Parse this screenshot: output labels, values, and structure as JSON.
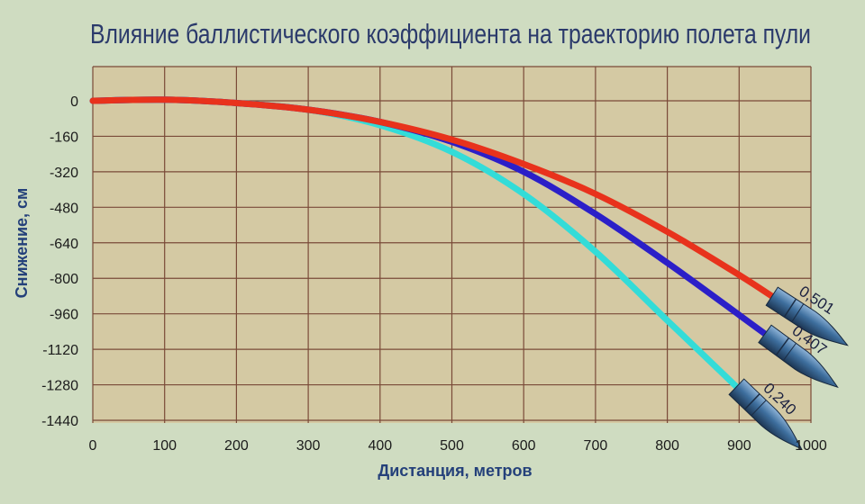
{
  "chart_data": {
    "type": "line",
    "title": "Влияние баллистического коэффициента на траекторию полета пули",
    "xlabel": "Дистанция, метров",
    "ylabel": "Снижение, см",
    "xlim": [
      0,
      1000
    ],
    "ylim": [
      -1440,
      0
    ],
    "x_ticks": [
      "0",
      "100",
      "200",
      "300",
      "400",
      "500",
      "600",
      "700",
      "800",
      "900",
      "1000"
    ],
    "y_ticks": [
      "0",
      "-160",
      "-320",
      "-480",
      "-640",
      "-800",
      "-960",
      "-1120",
      "-1280",
      "-1440"
    ],
    "grid": true,
    "series": [
      {
        "name": "0,501",
        "color": "#e8321c",
        "x": [
          0,
          100,
          200,
          300,
          400,
          500,
          600,
          700,
          800,
          900,
          950
        ],
        "y": [
          0,
          5,
          -10,
          -40,
          -95,
          -175,
          -285,
          -420,
          -590,
          -785,
          -890
        ]
      },
      {
        "name": "0,407",
        "color": "#2b1fc8",
        "x": [
          0,
          100,
          200,
          300,
          400,
          500,
          600,
          700,
          800,
          900,
          940
        ],
        "y": [
          0,
          5,
          -10,
          -40,
          -95,
          -185,
          -320,
          -510,
          -730,
          -965,
          -1060
        ]
      },
      {
        "name": "0,240",
        "color": "#33dcd8",
        "x": [
          0,
          100,
          200,
          300,
          400,
          500,
          600,
          700,
          800,
          900
        ],
        "y": [
          0,
          5,
          -10,
          -40,
          -110,
          -230,
          -420,
          -680,
          -990,
          -1300
        ]
      }
    ]
  }
}
